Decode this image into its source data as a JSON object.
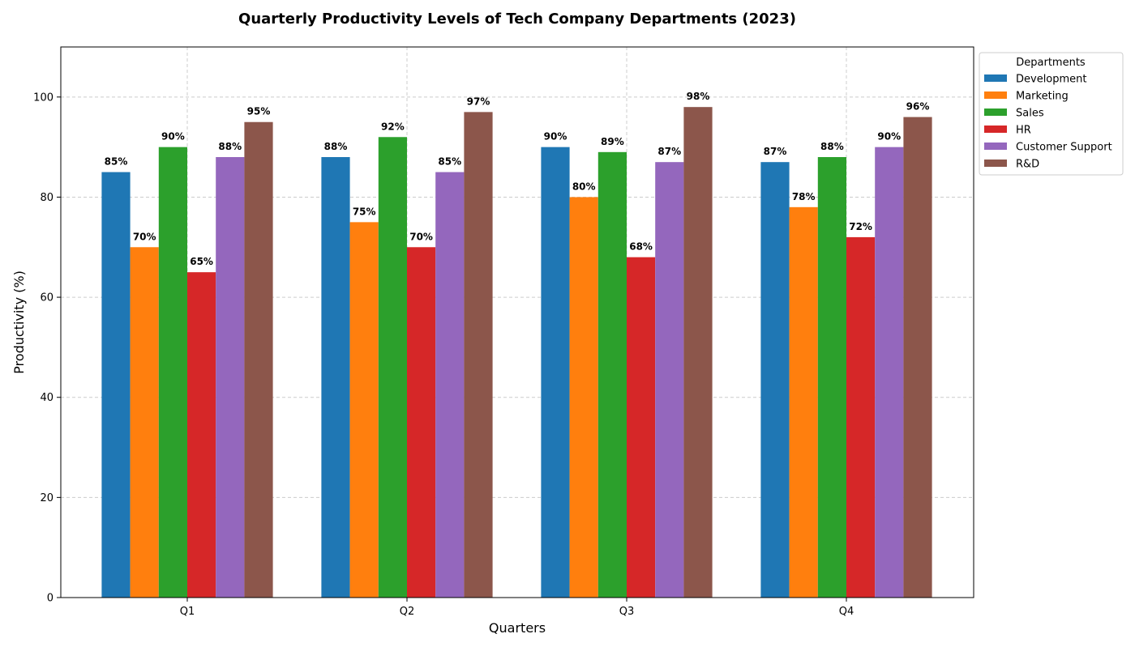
{
  "chart_data": {
    "type": "bar",
    "title": "Quarterly Productivity Levels of Tech Company Departments (2023)",
    "xlabel": "Quarters",
    "ylabel": "Productivity (%)",
    "categories": [
      "Q1",
      "Q2",
      "Q3",
      "Q4"
    ],
    "ylim": [
      0,
      110
    ],
    "yticks": [
      0,
      20,
      40,
      60,
      80,
      100
    ],
    "grid": true,
    "legend": {
      "title": "Departments",
      "placement": "outside-top-right"
    },
    "value_label_suffix": "%",
    "series": [
      {
        "name": "Development",
        "color": "#1f77b4",
        "values": [
          85,
          88,
          90,
          87
        ]
      },
      {
        "name": "Marketing",
        "color": "#ff7f0e",
        "values": [
          70,
          75,
          80,
          78
        ]
      },
      {
        "name": "Sales",
        "color": "#2ca02c",
        "values": [
          90,
          92,
          89,
          88
        ]
      },
      {
        "name": "HR",
        "color": "#d62728",
        "values": [
          65,
          70,
          68,
          72
        ]
      },
      {
        "name": "Customer Support",
        "color": "#9467bd",
        "values": [
          88,
          85,
          87,
          90
        ]
      },
      {
        "name": "R&D",
        "color": "#8c564b",
        "values": [
          95,
          97,
          98,
          96
        ]
      }
    ]
  }
}
